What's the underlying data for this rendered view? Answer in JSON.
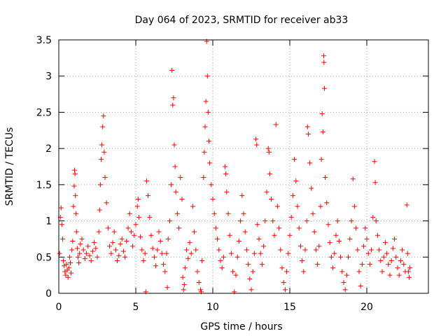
{
  "chart_data": {
    "type": "scatter",
    "title": "Day 064 of 2023, SRMTID for receiver ab33",
    "xlabel": "GPS time / hours",
    "ylabel": "SRMTID / TECUs",
    "xlim": [
      0,
      24
    ],
    "ylim": [
      0,
      3.5
    ],
    "xticks": [
      0,
      5,
      10,
      15,
      20
    ],
    "xtick_labels": [
      "0",
      "5",
      "10",
      "15",
      "20"
    ],
    "yticks": [
      0,
      0.5,
      1,
      1.5,
      2,
      2.5,
      3,
      3.5
    ],
    "ytick_labels": [
      "0",
      "0.5",
      "1",
      "1.5",
      "2",
      "2.5",
      "3",
      "3.5"
    ],
    "grid": true,
    "marker": "+",
    "color": "#ff0000",
    "series": [
      {
        "name": "SRMTID",
        "points": [
          [
            0.05,
            0.55
          ],
          [
            0.1,
            1.05
          ],
          [
            0.15,
            1.18
          ],
          [
            0.2,
            0.95
          ],
          [
            0.25,
            0.75
          ],
          [
            0.3,
            0.45
          ],
          [
            0.35,
            0.38
          ],
          [
            0.4,
            0.3
          ],
          [
            0.45,
            0.25
          ],
          [
            0.5,
            0.4
          ],
          [
            0.55,
            0.32
          ],
          [
            0.6,
            0.22
          ],
          [
            0.65,
            0.35
          ],
          [
            0.7,
            0.5
          ],
          [
            0.75,
            0.42
          ],
          [
            0.8,
            0.28
          ],
          [
            0.85,
            0.6
          ],
          [
            0.9,
            0.72
          ],
          [
            0.95,
            1.2
          ],
          [
            1.0,
            1.48
          ],
          [
            1.02,
            1.7
          ],
          [
            1.05,
            1.65
          ],
          [
            1.08,
            1.35
          ],
          [
            1.12,
            1.1
          ],
          [
            1.15,
            0.85
          ],
          [
            1.2,
            0.62
          ],
          [
            1.25,
            0.5
          ],
          [
            1.3,
            0.42
          ],
          [
            1.35,
            0.55
          ],
          [
            1.4,
            0.68
          ],
          [
            1.5,
            0.75
          ],
          [
            1.6,
            0.6
          ],
          [
            1.7,
            0.48
          ],
          [
            1.8,
            0.55
          ],
          [
            1.9,
            0.65
          ],
          [
            2.0,
            0.52
          ],
          [
            2.1,
            0.45
          ],
          [
            2.2,
            0.58
          ],
          [
            2.3,
            0.7
          ],
          [
            2.4,
            0.62
          ],
          [
            2.5,
            0.5
          ],
          [
            2.6,
            0.85
          ],
          [
            2.65,
            1.15
          ],
          [
            2.7,
            1.5
          ],
          [
            2.75,
            1.85
          ],
          [
            2.8,
            2.05
          ],
          [
            2.85,
            2.3
          ],
          [
            2.9,
            2.45
          ],
          [
            2.95,
            1.95
          ],
          [
            3.0,
            1.6
          ],
          [
            3.1,
            1.25
          ],
          [
            3.2,
            0.9
          ],
          [
            3.3,
            0.65
          ],
          [
            3.4,
            0.55
          ],
          [
            3.5,
            0.7
          ],
          [
            3.6,
            0.85
          ],
          [
            3.7,
            0.6
          ],
          [
            3.8,
            0.45
          ],
          [
            3.9,
            0.52
          ],
          [
            4.0,
            0.68
          ],
          [
            4.1,
            0.75
          ],
          [
            4.2,
            0.58
          ],
          [
            4.3,
            0.5
          ],
          [
            4.4,
            0.72
          ],
          [
            4.5,
            0.9
          ],
          [
            4.6,
            1.1
          ],
          [
            4.7,
            0.85
          ],
          [
            4.8,
            0.65
          ],
          [
            4.9,
            0.8
          ],
          [
            5.0,
            0.95
          ],
          [
            5.1,
            1.2
          ],
          [
            5.15,
            1.3
          ],
          [
            5.2,
            1.05
          ],
          [
            5.3,
            0.78
          ],
          [
            5.4,
            0.6
          ],
          [
            5.5,
            0.45
          ],
          [
            5.6,
            0.55
          ],
          [
            5.65,
            0.02
          ],
          [
            5.7,
            1.55
          ],
          [
            5.8,
            1.35
          ],
          [
            5.9,
            1.05
          ],
          [
            6.0,
            0.8
          ],
          [
            6.1,
            0.62
          ],
          [
            6.2,
            0.5
          ],
          [
            6.3,
            0.38
          ],
          [
            6.4,
            0.6
          ],
          [
            6.5,
            0.85
          ],
          [
            6.6,
            0.72
          ],
          [
            6.7,
            0.55
          ],
          [
            6.8,
            0.4
          ],
          [
            6.9,
            0.3
          ],
          [
            7.0,
            0.55
          ],
          [
            7.05,
            0.08
          ],
          [
            7.1,
            0.75
          ],
          [
            7.2,
            1.0
          ],
          [
            7.3,
            1.5
          ],
          [
            7.35,
            3.08
          ],
          [
            7.4,
            2.6
          ],
          [
            7.45,
            2.7
          ],
          [
            7.5,
            2.05
          ],
          [
            7.55,
            1.75
          ],
          [
            7.6,
            1.4
          ],
          [
            7.7,
            1.1
          ],
          [
            7.8,
            0.9
          ],
          [
            7.9,
            1.6
          ],
          [
            8.0,
            1.3
          ],
          [
            8.05,
            0.22
          ],
          [
            8.1,
            0.05
          ],
          [
            8.15,
            0.12
          ],
          [
            8.2,
            0.35
          ],
          [
            8.3,
            0.6
          ],
          [
            8.4,
            0.48
          ],
          [
            8.5,
            0.7
          ],
          [
            8.6,
            0.55
          ],
          [
            8.7,
            1.2
          ],
          [
            8.8,
            0.85
          ],
          [
            8.9,
            0.6
          ],
          [
            9.0,
            0.3
          ],
          [
            9.1,
            0.15
          ],
          [
            9.2,
            0.05
          ],
          [
            9.25,
            0.02
          ],
          [
            9.3,
            0.45
          ],
          [
            9.4,
            1.6
          ],
          [
            9.45,
            1.95
          ],
          [
            9.5,
            2.3
          ],
          [
            9.55,
            2.65
          ],
          [
            9.6,
            3.48
          ],
          [
            9.65,
            3.0
          ],
          [
            9.7,
            2.5
          ],
          [
            9.75,
            2.1
          ],
          [
            9.8,
            1.8
          ],
          [
            9.9,
            1.5
          ],
          [
            10.0,
            1.3
          ],
          [
            10.1,
            1.1
          ],
          [
            10.2,
            0.9
          ],
          [
            10.3,
            0.75
          ],
          [
            10.4,
            0.6
          ],
          [
            10.5,
            0.45
          ],
          [
            10.6,
            0.35
          ],
          [
            10.7,
            0.5
          ],
          [
            10.8,
            1.75
          ],
          [
            10.85,
            1.65
          ],
          [
            10.9,
            1.4
          ],
          [
            11.0,
            1.1
          ],
          [
            11.1,
            0.8
          ],
          [
            11.2,
            0.55
          ],
          [
            11.3,
            0.3
          ],
          [
            11.4,
            0.02
          ],
          [
            11.5,
            0.25
          ],
          [
            11.6,
            0.5
          ],
          [
            11.7,
            0.72
          ],
          [
            11.8,
            1.0
          ],
          [
            11.9,
            1.35
          ],
          [
            12.0,
            1.1
          ],
          [
            12.1,
            0.85
          ],
          [
            12.2,
            0.6
          ],
          [
            12.3,
            0.4
          ],
          [
            12.4,
            0.2
          ],
          [
            12.5,
            0.05
          ],
          [
            12.6,
            0.3
          ],
          [
            12.7,
            0.55
          ],
          [
            12.8,
            2.13
          ],
          [
            12.85,
            2.05
          ],
          [
            12.9,
            0.95
          ],
          [
            13.0,
            0.75
          ],
          [
            13.1,
            0.55
          ],
          [
            13.2,
            0.4
          ],
          [
            13.3,
            0.65
          ],
          [
            13.4,
            1.0
          ],
          [
            13.5,
            1.4
          ],
          [
            13.6,
            2.0
          ],
          [
            13.65,
            1.95
          ],
          [
            13.7,
            1.65
          ],
          [
            13.8,
            1.3
          ],
          [
            13.9,
            1.0
          ],
          [
            14.0,
            0.8
          ],
          [
            14.1,
            2.33
          ],
          [
            14.2,
            1.2
          ],
          [
            14.3,
            0.9
          ],
          [
            14.4,
            0.6
          ],
          [
            14.5,
            0.35
          ],
          [
            14.6,
            0.15
          ],
          [
            14.7,
            0.05
          ],
          [
            14.8,
            0.3
          ],
          [
            14.9,
            0.55
          ],
          [
            15.0,
            0.8
          ],
          [
            15.1,
            1.05
          ],
          [
            15.2,
            1.35
          ],
          [
            15.3,
            1.85
          ],
          [
            15.4,
            1.55
          ],
          [
            15.5,
            1.2
          ],
          [
            15.6,
            0.9
          ],
          [
            15.7,
            0.65
          ],
          [
            15.8,
            0.45
          ],
          [
            15.9,
            0.3
          ],
          [
            16.0,
            0.6
          ],
          [
            16.1,
            1.0
          ],
          [
            16.15,
            2.3
          ],
          [
            16.2,
            2.2
          ],
          [
            16.3,
            1.8
          ],
          [
            16.4,
            1.45
          ],
          [
            16.5,
            1.1
          ],
          [
            16.6,
            0.85
          ],
          [
            16.7,
            0.6
          ],
          [
            16.8,
            0.4
          ],
          [
            16.9,
            0.65
          ],
          [
            17.0,
            1.2
          ],
          [
            17.05,
            1.85
          ],
          [
            17.1,
            2.48
          ],
          [
            17.15,
            2.23
          ],
          [
            17.2,
            3.28
          ],
          [
            17.22,
            3.19
          ],
          [
            17.25,
            2.83
          ],
          [
            17.3,
            1.6
          ],
          [
            17.4,
            1.25
          ],
          [
            17.5,
            0.95
          ],
          [
            17.6,
            0.7
          ],
          [
            17.7,
            0.5
          ],
          [
            17.8,
            0.35
          ],
          [
            17.9,
            0.55
          ],
          [
            18.0,
            0.8
          ],
          [
            18.1,
            1.0
          ],
          [
            18.2,
            0.72
          ],
          [
            18.3,
            0.5
          ],
          [
            18.4,
            0.3
          ],
          [
            18.5,
            0.15
          ],
          [
            18.6,
            0.05
          ],
          [
            18.7,
            0.25
          ],
          [
            18.8,
            0.5
          ],
          [
            18.9,
            0.75
          ],
          [
            19.0,
            1.0
          ],
          [
            19.1,
            1.58
          ],
          [
            19.2,
            1.2
          ],
          [
            19.3,
            0.9
          ],
          [
            19.4,
            0.6
          ],
          [
            19.5,
            0.3
          ],
          [
            19.6,
            0.1
          ],
          [
            19.7,
            0.4
          ],
          [
            19.8,
            0.65
          ],
          [
            19.9,
            0.9
          ],
          [
            20.0,
            0.75
          ],
          [
            20.1,
            0.55
          ],
          [
            20.2,
            0.4
          ],
          [
            20.3,
            0.6
          ],
          [
            20.4,
            1.05
          ],
          [
            20.5,
            1.82
          ],
          [
            20.55,
            1.53
          ],
          [
            20.6,
            1.0
          ],
          [
            20.7,
            0.8
          ],
          [
            20.8,
            0.6
          ],
          [
            20.9,
            0.45
          ],
          [
            21.0,
            0.3
          ],
          [
            21.1,
            0.5
          ],
          [
            21.2,
            0.7
          ],
          [
            21.3,
            0.55
          ],
          [
            21.4,
            0.4
          ],
          [
            21.5,
            0.25
          ],
          [
            21.6,
            0.45
          ],
          [
            21.7,
            0.62
          ],
          [
            21.8,
            0.75
          ],
          [
            21.9,
            0.5
          ],
          [
            22.0,
            0.35
          ],
          [
            22.1,
            0.25
          ],
          [
            22.2,
            0.45
          ],
          [
            22.3,
            0.6
          ],
          [
            22.4,
            0.4
          ],
          [
            22.5,
            0.3
          ],
          [
            22.6,
            1.22
          ],
          [
            22.65,
            0.55
          ],
          [
            22.7,
            0.3
          ],
          [
            22.75,
            0.22
          ],
          [
            22.8,
            0.35
          ]
        ]
      }
    ]
  }
}
